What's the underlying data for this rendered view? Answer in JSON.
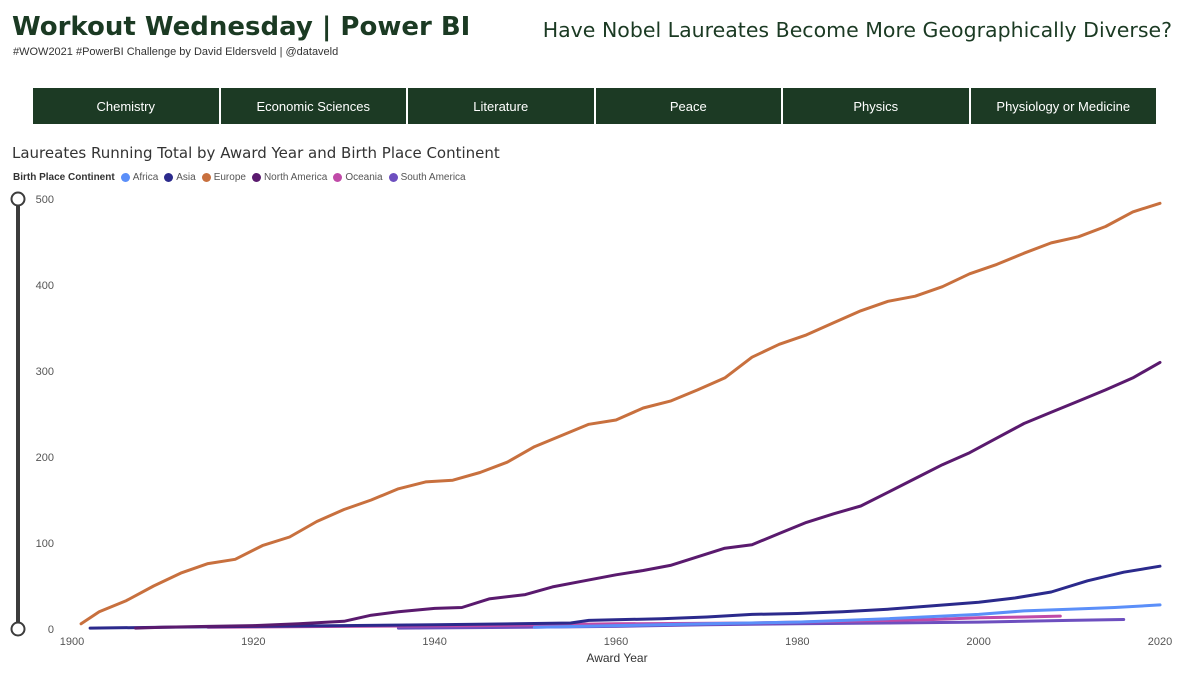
{
  "header": {
    "title": "Workout Wednesday | Power BI",
    "subtitle": "#WOW2021 #PowerBI Challenge by David Eldersveld | @dataveld",
    "question": "Have Nobel Laureates Become More Geographically Diverse?"
  },
  "tabs": [
    {
      "label": "Chemistry"
    },
    {
      "label": "Economic Sciences"
    },
    {
      "label": "Literature"
    },
    {
      "label": "Peace"
    },
    {
      "label": "Physics"
    },
    {
      "label": "Physiology or Medicine"
    }
  ],
  "legend": {
    "title": "Birth Place Continent",
    "items": [
      {
        "label": "Africa",
        "color": "#5b8ff9"
      },
      {
        "label": "Asia",
        "color": "#2b2a8c"
      },
      {
        "label": "Europe",
        "color": "#c8703e"
      },
      {
        "label": "North America",
        "color": "#5a1a6e"
      },
      {
        "label": "Oceania",
        "color": "#c04aa8"
      },
      {
        "label": "South America",
        "color": "#6d4fbf"
      }
    ]
  },
  "chart_data": {
    "type": "line",
    "title": "Laureates Running Total by Award Year and Birth Place Continent",
    "xlabel": "Award Year",
    "ylabel": "",
    "xlim": [
      1900,
      2020
    ],
    "ylim": [
      0,
      500
    ],
    "x_ticks": [
      "1900",
      "1920",
      "1940",
      "1960",
      "1980",
      "2000",
      "2020"
    ],
    "y_ticks": [
      "0",
      "100",
      "200",
      "300",
      "400",
      "500"
    ],
    "series": [
      {
        "name": "Europe",
        "color": "#c8703e",
        "x": [
          1901,
          1903,
          1906,
          1909,
          1912,
          1915,
          1918,
          1921,
          1924,
          1927,
          1930,
          1933,
          1936,
          1939,
          1942,
          1945,
          1948,
          1951,
          1954,
          1957,
          1960,
          1963,
          1966,
          1969,
          1972,
          1975,
          1978,
          1981,
          1984,
          1987,
          1990,
          1993,
          1996,
          1999,
          2002,
          2005,
          2008,
          2011,
          2014,
          2017,
          2020
        ],
        "y": [
          6,
          20,
          33,
          50,
          65,
          76,
          81,
          97,
          107,
          125,
          139,
          150,
          163,
          171,
          173,
          182,
          194,
          212,
          225,
          238,
          243,
          257,
          265,
          278,
          292,
          316,
          331,
          342,
          356,
          370,
          381,
          387,
          398,
          413,
          424,
          437,
          449,
          456,
          468,
          485,
          495
        ]
      },
      {
        "name": "North America",
        "color": "#5a1a6e",
        "x": [
          1907,
          1910,
          1915,
          1920,
          1925,
          1930,
          1933,
          1936,
          1940,
          1943,
          1946,
          1950,
          1953,
          1956,
          1960,
          1963,
          1966,
          1969,
          1972,
          1975,
          1978,
          1981,
          1984,
          1987,
          1990,
          1993,
          1996,
          1999,
          2002,
          2005,
          2008,
          2011,
          2014,
          2017,
          2020
        ],
        "y": [
          1,
          2,
          3,
          4,
          6,
          9,
          16,
          20,
          24,
          25,
          35,
          40,
          49,
          55,
          63,
          68,
          74,
          84,
          94,
          98,
          111,
          124,
          134,
          143,
          159,
          175,
          191,
          205,
          222,
          239,
          252,
          265,
          278,
          292,
          310
        ]
      },
      {
        "name": "Asia",
        "color": "#2b2a8c",
        "x": [
          1902,
          1910,
          1920,
          1930,
          1940,
          1949,
          1955,
          1957,
          1965,
          1970,
          1975,
          1980,
          1985,
          1990,
          1995,
          2000,
          2004,
          2008,
          2012,
          2016,
          2020
        ],
        "y": [
          1,
          2,
          3,
          4,
          5,
          6,
          7,
          10,
          12,
          14,
          17,
          18,
          20,
          23,
          27,
          31,
          36,
          43,
          56,
          66,
          73
        ]
      },
      {
        "name": "Africa",
        "color": "#5b8ff9",
        "x": [
          1951,
          1960,
          1970,
          1980,
          1990,
          2000,
          2005,
          2010,
          2015,
          2020
        ],
        "y": [
          2,
          4,
          6,
          8,
          12,
          17,
          21,
          23,
          25,
          28
        ]
      },
      {
        "name": "Oceania",
        "color": "#c04aa8",
        "x": [
          1915,
          1930,
          1945,
          1960,
          1975,
          1985,
          1995,
          2000,
          2005,
          2009
        ],
        "y": [
          2,
          3,
          4,
          6,
          7,
          9,
          11,
          13,
          14,
          15
        ]
      },
      {
        "name": "South America",
        "color": "#6d4fbf",
        "x": [
          1936,
          1950,
          1960,
          1970,
          1980,
          1990,
          2000,
          2010,
          2016
        ],
        "y": [
          1,
          2,
          3,
          5,
          6,
          7,
          8,
          10,
          11
        ]
      }
    ]
  }
}
